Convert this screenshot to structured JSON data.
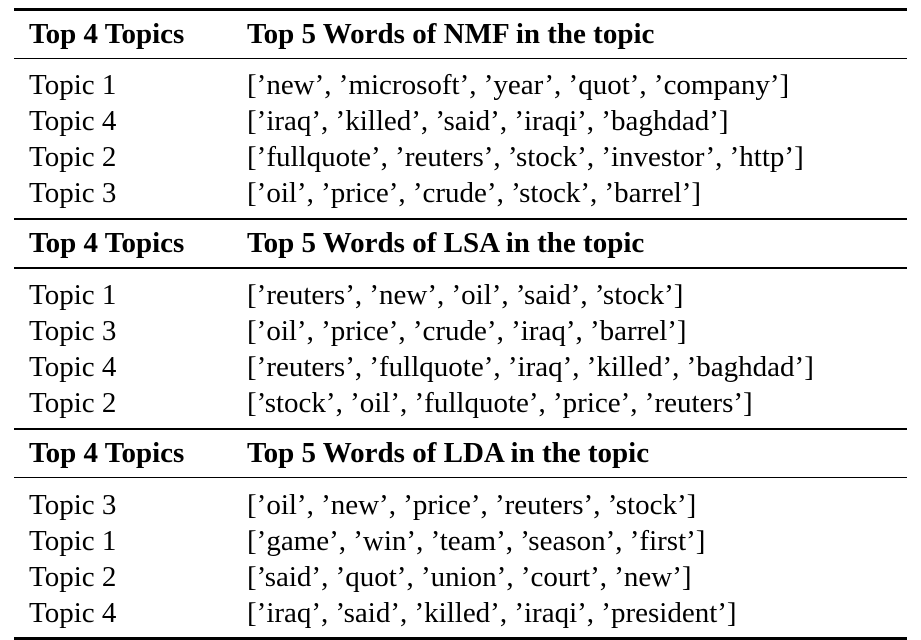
{
  "sections": [
    {
      "header_col1": "Top 4 Topics",
      "header_col2": "Top 5 Words of NMF in the topic",
      "rows": [
        {
          "topic": "Topic 1",
          "words": "[’new’, ’microsoft’, ’year’, ’quot’, ’company’]"
        },
        {
          "topic": "Topic 4",
          "words": "[’iraq’, ’killed’, ’said’, ’iraqi’, ’baghdad’]"
        },
        {
          "topic": "Topic 2",
          "words": "[’fullquote’, ’reuters’, ’stock’, ’investor’, ’http’]"
        },
        {
          "topic": "Topic 3",
          "words": "[’oil’, ’price’, ’crude’, ’stock’, ’barrel’]"
        }
      ]
    },
    {
      "header_col1": "Top 4 Topics",
      "header_col2": "Top 5 Words of LSA in the topic",
      "rows": [
        {
          "topic": "Topic 1",
          "words": "[’reuters’, ’new’, ’oil’, ’said’, ’stock’]"
        },
        {
          "topic": "Topic 3",
          "words": "[’oil’, ’price’, ’crude’, ’iraq’, ’barrel’]"
        },
        {
          "topic": "Topic 4",
          "words": "[’reuters’, ’fullquote’, ’iraq’, ’killed’, ’baghdad’]"
        },
        {
          "topic": "Topic 2",
          "words": "[’stock’, ’oil’, ’fullquote’, ’price’, ’reuters’]"
        }
      ]
    },
    {
      "header_col1": "Top 4 Topics",
      "header_col2": "Top 5 Words of LDA in the topic",
      "rows": [
        {
          "topic": "Topic 3",
          "words": "[’oil’, ’new’, ’price’, ’reuters’, ’stock’]"
        },
        {
          "topic": "Topic 1",
          "words": "[’game’, ’win’, ’team’, ’season’, ’first’]"
        },
        {
          "topic": "Topic 2",
          "words": "[’said’, ’quot’, ’union’, ’court’, ’new’]"
        },
        {
          "topic": "Topic 4",
          "words": "[’iraq’, ’said’, ’killed’, ’iraqi’, ’president’]"
        }
      ]
    }
  ]
}
